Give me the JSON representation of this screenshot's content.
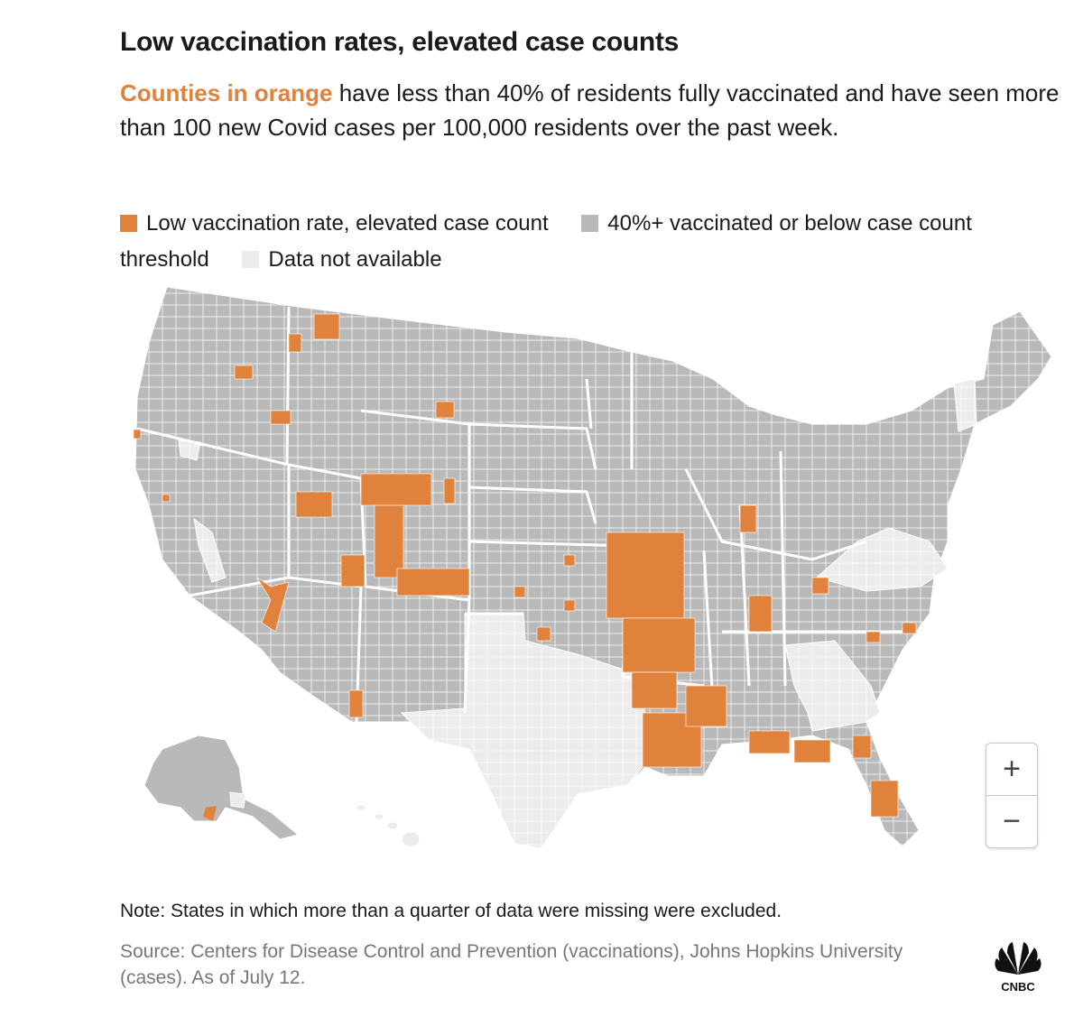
{
  "title": "Low vaccination rates, elevated case counts",
  "subtitle": {
    "highlight": "Counties in orange",
    "rest": " have less than 40% of residents fully vaccinated and have seen more than 100 new Covid cases per 100,000 residents over the past week."
  },
  "legend": [
    {
      "label": "Low vaccination rate, elevated case count",
      "color": "#e0823c"
    },
    {
      "label": "40%+ vaccinated or below case count threshold",
      "color": "#b9b9b9"
    },
    {
      "label": "Data not available",
      "color": "#ececec"
    }
  ],
  "colors": {
    "orange": "#e0823c",
    "gray": "#b9b9b9",
    "na": "#ececec",
    "border": "#ffffff"
  },
  "zoom": {
    "in_label": "+",
    "out_label": "−"
  },
  "note": "Note: States in which more than a quarter of data were missing were excluded.",
  "source": "Source: Centers for Disease Control and Prevention (vaccinations), Johns Hopkins University (cases). As of July 12.",
  "logo": {
    "text": "CNBC"
  }
}
